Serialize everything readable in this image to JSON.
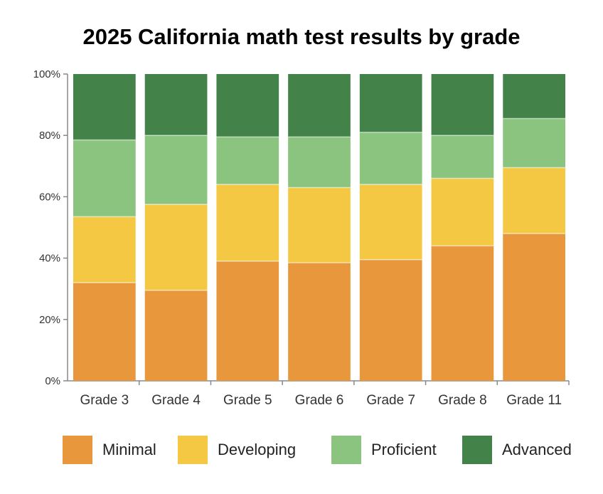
{
  "chart_data": {
    "type": "bar",
    "stacked": true,
    "title": "2025 California math test results by grade",
    "categories": [
      "Grade 3",
      "Grade 4",
      "Grade 5",
      "Grade 6",
      "Grade 7",
      "Grade 8",
      "Grade 11"
    ],
    "series": [
      {
        "name": "Minimal",
        "color": "#e8973c",
        "values": [
          32,
          29.5,
          39,
          38.5,
          39.5,
          44,
          48
        ]
      },
      {
        "name": "Developing",
        "color": "#f5c843",
        "values": [
          21.5,
          28,
          25,
          24.5,
          24.5,
          22,
          21.5
        ]
      },
      {
        "name": "Proficient",
        "color": "#8ac47e",
        "values": [
          25,
          22.5,
          15.5,
          16.5,
          17,
          14,
          16
        ]
      },
      {
        "name": "Advanced",
        "color": "#43834a",
        "values": [
          21.5,
          20,
          20.5,
          20.5,
          19,
          20,
          14.5
        ]
      }
    ],
    "y_ticks": [
      "0%",
      "20%",
      "40%",
      "60%",
      "80%",
      "100%"
    ],
    "y_tick_values": [
      0,
      20,
      40,
      60,
      80,
      100
    ],
    "ylim": [
      0,
      100
    ],
    "xlabel": "",
    "ylabel": "",
    "legend_position": "bottom"
  }
}
